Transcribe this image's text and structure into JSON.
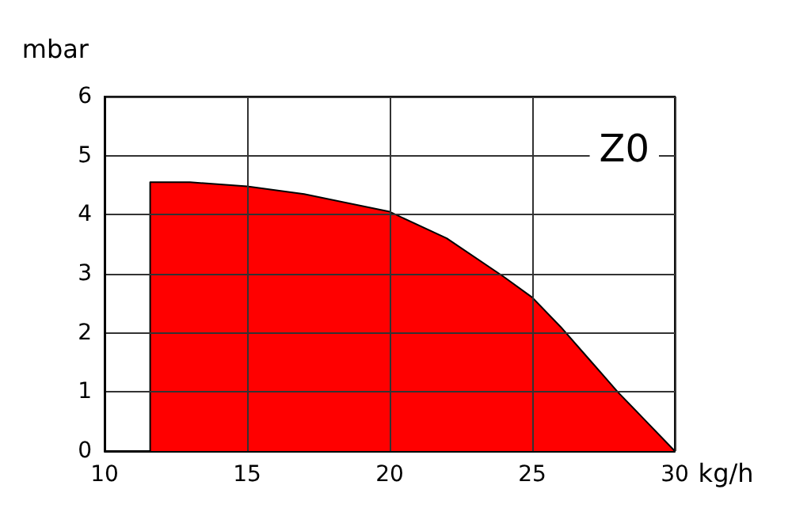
{
  "chart_data": {
    "type": "area",
    "xlabel": "kg/h",
    "ylabel": "mbar",
    "annotations": [
      "Z0"
    ],
    "series": [
      {
        "color": "#ff0000",
        "x": [
          11.6,
          11.6,
          13,
          15,
          17,
          20,
          22,
          24,
          25,
          26,
          27,
          28,
          29,
          30
        ],
        "values": [
          0,
          4.55,
          4.55,
          4.48,
          4.35,
          4.05,
          3.6,
          2.95,
          2.6,
          2.1,
          1.55,
          1.0,
          0.5,
          0
        ]
      }
    ],
    "xlim": [
      10,
      30
    ],
    "xticks": [
      10,
      15,
      20,
      25,
      30
    ],
    "ylim": [
      0,
      6
    ],
    "yticks": [
      0,
      1,
      2,
      3,
      4,
      5,
      6
    ],
    "grid": true,
    "marker": "none",
    "line_style": "solid"
  }
}
